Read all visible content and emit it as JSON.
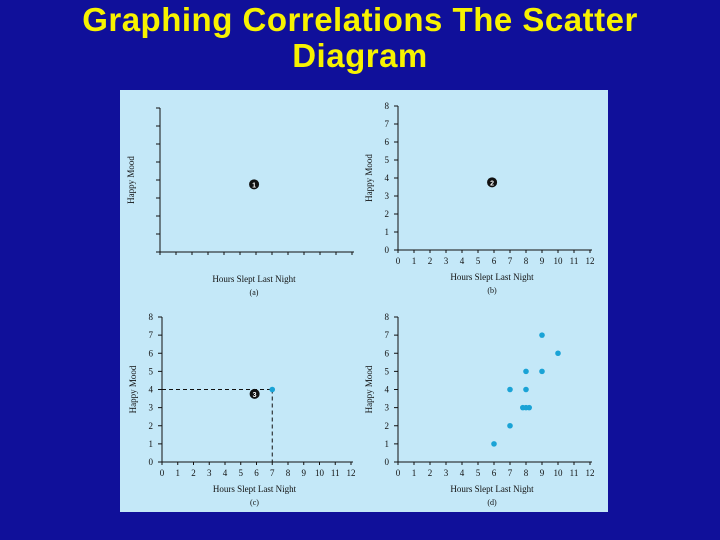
{
  "slide": {
    "title_line1": "Graphing Correlations The Scatter",
    "title_line2": "Diagram",
    "colors": {
      "background": "#10109a",
      "title": "#f7f200",
      "panel": "#c4e8f8",
      "points": "#1aa3d6",
      "ink": "#111111"
    }
  },
  "chart_data": [
    {
      "type": "scatter",
      "id": "a",
      "caption": "(a)",
      "xlabel": "Hours Slept Last Night",
      "ylabel": "Happy Mood",
      "marker": "1",
      "show_tick_labels": false,
      "xlim": [
        0,
        12
      ],
      "ylim": [
        0,
        8
      ],
      "x_ticks": [],
      "y_ticks": [],
      "points": []
    },
    {
      "type": "scatter",
      "id": "b",
      "caption": "(b)",
      "xlabel": "Hours Slept Last Night",
      "ylabel": "Happy Mood",
      "marker": "2",
      "show_tick_labels": true,
      "xlim": [
        0,
        12
      ],
      "ylim": [
        0,
        8
      ],
      "x_ticks": [
        "0",
        "1",
        "2",
        "3",
        "4",
        "5",
        "6",
        "7",
        "8",
        "9",
        "10",
        "11",
        "12"
      ],
      "y_ticks": [
        "0",
        "1",
        "2",
        "3",
        "4",
        "5",
        "6",
        "7",
        "8"
      ],
      "points": []
    },
    {
      "type": "scatter",
      "id": "c",
      "caption": "(c)",
      "xlabel": "Hours Slept Last Night",
      "ylabel": "Happy Mood",
      "marker": "3",
      "show_tick_labels": true,
      "xlim": [
        0,
        12
      ],
      "ylim": [
        0,
        8
      ],
      "x_ticks": [
        "0",
        "1",
        "2",
        "3",
        "4",
        "5",
        "6",
        "7",
        "8",
        "9",
        "10",
        "11",
        "12"
      ],
      "y_ticks": [
        "0",
        "1",
        "2",
        "3",
        "4",
        "5",
        "6",
        "7",
        "8"
      ],
      "points": [
        {
          "x": 7,
          "y": 4
        }
      ],
      "guide_point": {
        "x": 7,
        "y": 4
      }
    },
    {
      "type": "scatter",
      "id": "d",
      "caption": "(d)",
      "xlabel": "Hours Slept Last Night",
      "ylabel": "Happy Mood",
      "marker": "",
      "show_tick_labels": true,
      "xlim": [
        0,
        12
      ],
      "ylim": [
        0,
        8
      ],
      "x_ticks": [
        "0",
        "1",
        "2",
        "3",
        "4",
        "5",
        "6",
        "7",
        "8",
        "9",
        "10",
        "11",
        "12"
      ],
      "y_ticks": [
        "0",
        "1",
        "2",
        "3",
        "4",
        "5",
        "6",
        "7",
        "8"
      ],
      "points": [
        {
          "x": 6,
          "y": 1
        },
        {
          "x": 7,
          "y": 2
        },
        {
          "x": 7,
          "y": 4
        },
        {
          "x": 8,
          "y": 5
        },
        {
          "x": 8,
          "y": 4
        },
        {
          "x": 8,
          "y": 3
        },
        {
          "x": 8.2,
          "y": 3
        },
        {
          "x": 7.8,
          "y": 3
        },
        {
          "x": 9,
          "y": 7
        },
        {
          "x": 9,
          "y": 5
        },
        {
          "x": 10,
          "y": 6
        }
      ]
    }
  ]
}
